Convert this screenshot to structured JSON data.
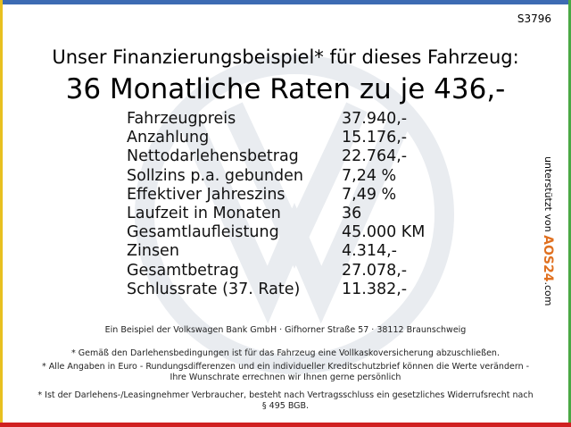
{
  "code": "S3796",
  "header": {
    "subtitle": "Unser Finanzierungsbeispiel* für dieses Fahrzeug:",
    "title": "36 Monatliche Raten zu je 436,-"
  },
  "table": {
    "rows": [
      [
        "Fahrzeugpreis",
        "37.940,-"
      ],
      [
        "Anzahlung",
        "15.176,-"
      ],
      [
        "Nettodarlehensbetrag",
        "22.764,-"
      ],
      [
        "Sollzins p.a. gebunden",
        "7,24 %"
      ],
      [
        "Effektiver Jahreszins",
        "7,49 %"
      ],
      [
        "Laufzeit in Monaten",
        "36"
      ],
      [
        "Gesamtlaufleistung",
        "45.000 KM"
      ],
      [
        "Zinsen",
        "4.314,-"
      ],
      [
        "Gesamtbetrag",
        "27.078,-"
      ],
      [
        "Schlussrate (37. Rate)",
        "11.382,-"
      ]
    ]
  },
  "side_note": {
    "text": "unterstützt von",
    "brand": "AOS24",
    "domain": ".com"
  },
  "footer": {
    "bank": "Ein Beispiel der Volkswagen Bank GmbH · Gifhorner Straße 57 · 38112 Braunschweig",
    "notes": [
      "* Gemäß den Darlehensbedingungen ist für das Fahrzeug eine Vollkaskoversicherung abzuschließen.",
      "* Alle Angaben in Euro - Rundungsdifferenzen und ein individueller Kreditschutzbrief können die Werte verändern - Ihre Wunschrate errechnen wir Ihnen gerne persönlich",
      "* Ist der Darlehens-/Leasingnehmer Verbraucher, besteht nach Vertragsschluss ein gesetzliches Widerrufsrecht nach § 495 BGB."
    ]
  }
}
